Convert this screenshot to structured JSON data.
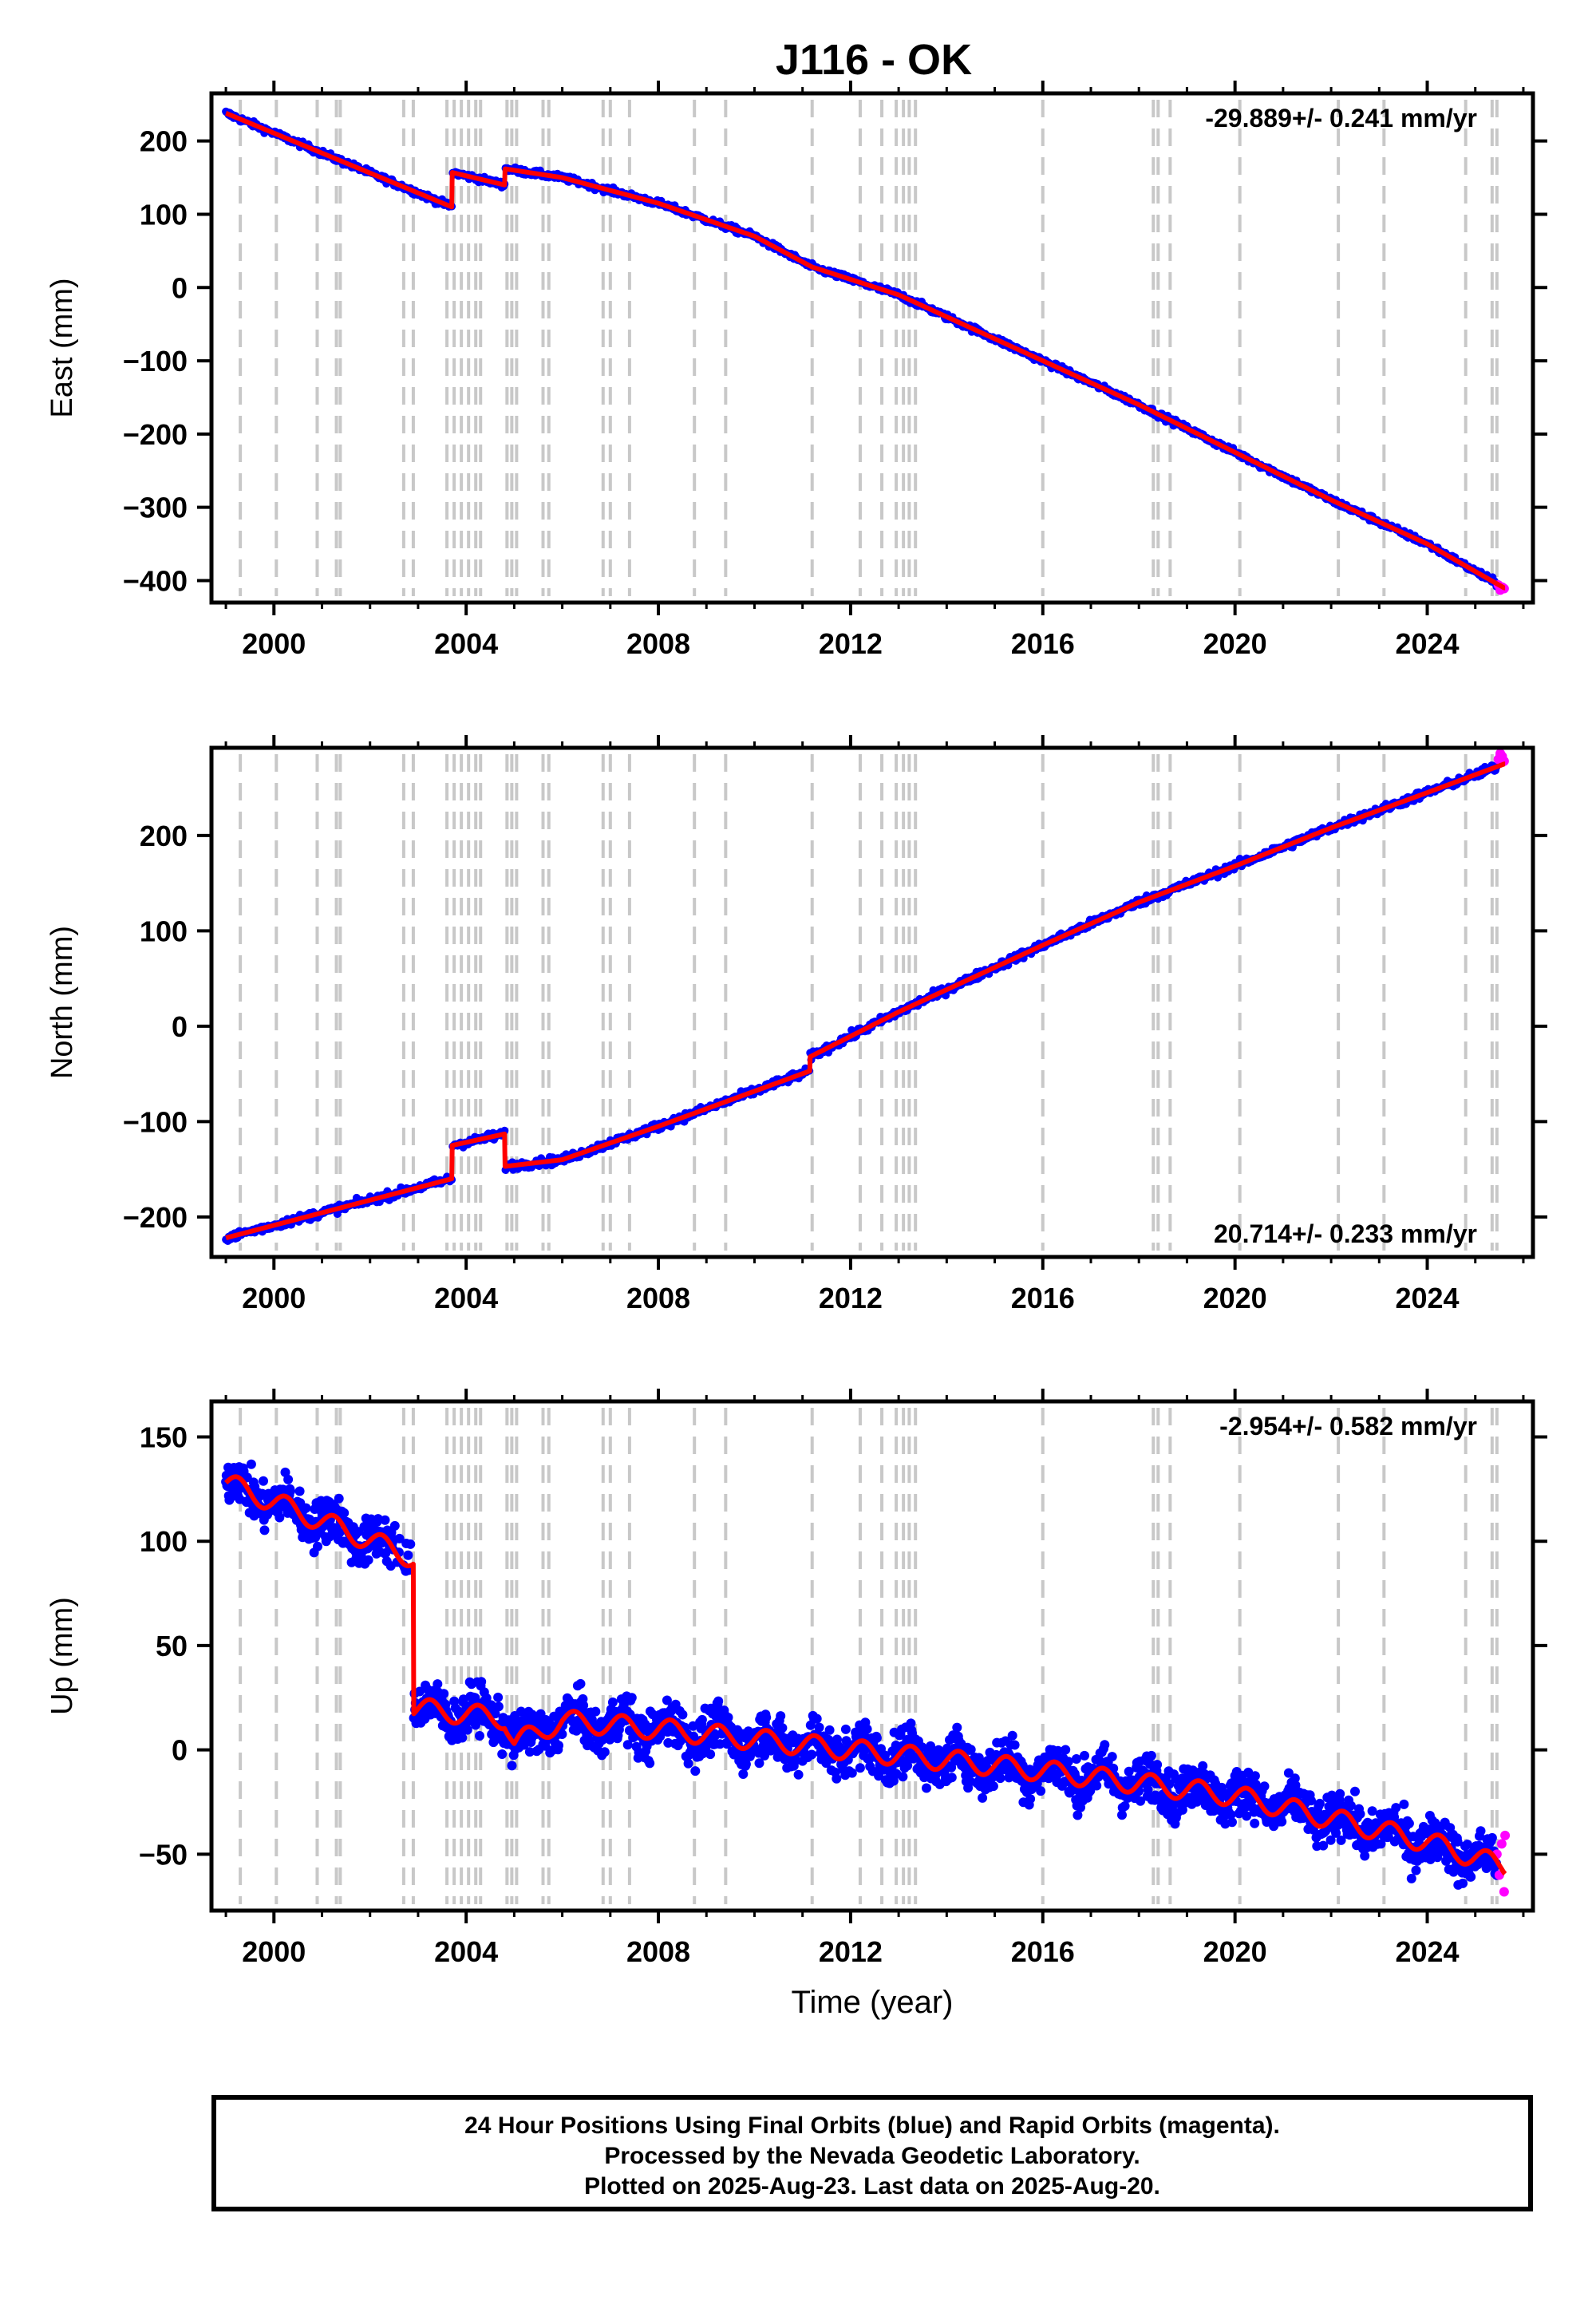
{
  "title": "J116 - OK",
  "colors": {
    "final_orbits": "#0000ff",
    "rapid_orbits": "#ff00ff",
    "model": "#ff0000",
    "event_lines": "#c8c8c8"
  },
  "footer": {
    "line1": "24 Hour Positions Using Final Orbits (blue) and Rapid Orbits (magenta).",
    "line2": "Processed by the Nevada Geodetic Laboratory.",
    "line3": "Plotted on 2025-Aug-23. Last data on 2025-Aug-20."
  },
  "chart_data": [
    {
      "type": "scatter",
      "panel": "east",
      "ylabel": "East (mm)",
      "xlabel": "",
      "xlim": [
        1998.7,
        2026.2
      ],
      "ylim": [
        -430,
        265
      ],
      "xticks": [
        2000,
        2004,
        2008,
        2012,
        2016,
        2020,
        2024
      ],
      "yticks": [
        -400,
        -300,
        -200,
        -100,
        0,
        100,
        200
      ],
      "rate_label": "-29.889+/- 0.241 mm/yr",
      "rate_position": "top-right",
      "trend": {
        "x": [
          1999.0,
          2003.7,
          2003.71,
          2004.8,
          2004.81,
          2006.0,
          2008.0,
          2010.0,
          2011.2,
          2013.0,
          2015.0,
          2016.0,
          2018.0,
          2020.0,
          2022.0,
          2024.0,
          2025.6
        ],
        "y": [
          238,
          110,
          157,
          140,
          162,
          150,
          115,
          70,
          28,
          -10,
          -70,
          -100,
          -160,
          -225,
          -290,
          -350,
          -410
        ]
      },
      "rapid": {
        "x": [
          2025.48,
          2025.52,
          2025.56,
          2025.6
        ],
        "y": [
          -406,
          -413,
          -409,
          -411
        ]
      },
      "scatter_mm": 3
    },
    {
      "type": "scatter",
      "panel": "north",
      "ylabel": "North (mm)",
      "xlabel": "",
      "xlim": [
        1998.7,
        2026.2
      ],
      "ylim": [
        -242,
        292
      ],
      "xticks": [
        2000,
        2004,
        2008,
        2012,
        2016,
        2020,
        2024
      ],
      "yticks": [
        -200,
        -100,
        0,
        100,
        200
      ],
      "rate_label": "20.714+/- 0.233 mm/yr",
      "rate_position": "bottom-right",
      "trend": {
        "x": [
          1999.0,
          2003.7,
          2003.71,
          2004.8,
          2004.81,
          2006.0,
          2008.0,
          2011.15,
          2011.16,
          2013.0,
          2016.0,
          2018.0,
          2020.0,
          2022.0,
          2024.0,
          2025.6
        ],
        "y": [
          -222,
          -160,
          -125,
          -113,
          -147,
          -140,
          -105,
          -47,
          -32,
          15,
          85,
          130,
          168,
          208,
          245,
          275
        ]
      },
      "rapid": {
        "x": [
          2025.48,
          2025.52,
          2025.56,
          2025.6
        ],
        "y": [
          280,
          286,
          283,
          278
        ]
      },
      "scatter_mm": 3
    },
    {
      "type": "scatter",
      "panel": "up",
      "ylabel": "Up (mm)",
      "xlabel": "Time (year)",
      "xlim": [
        1998.7,
        2026.2
      ],
      "ylim": [
        -77,
        167
      ],
      "xticks": [
        2000,
        2004,
        2008,
        2012,
        2016,
        2020,
        2024
      ],
      "yticks": [
        -50,
        0,
        50,
        100,
        150
      ],
      "rate_label": "-2.954+/- 0.582 mm/yr",
      "rate_position": "top-right",
      "trend": {
        "x": [
          1999.0,
          2002.9,
          2002.91,
          2004.8,
          2005.0,
          2006.0,
          2008.0,
          2012.0,
          2016.0,
          2020.0,
          2024.0,
          2025.6
        ],
        "y": [
          128,
          92,
          20,
          15,
          3,
          14,
          10,
          0,
          -10,
          -22,
          -44,
          -56
        ]
      },
      "seasonal_amp_mm": 5,
      "rapid": {
        "x": [
          2025.45,
          2025.5,
          2025.55,
          2025.6,
          2025.62
        ],
        "y": [
          -50,
          -60,
          -45,
          -68,
          -41
        ]
      },
      "scatter_mm": 8
    }
  ],
  "event_years": [
    1999.3,
    2000.05,
    2000.9,
    2001.3,
    2001.38,
    2002.7,
    2002.9,
    2003.6,
    2003.75,
    2003.9,
    2004.05,
    2004.2,
    2004.3,
    2004.85,
    2004.95,
    2005.05,
    2005.6,
    2005.72,
    2006.85,
    2007.0,
    2007.4,
    2008.75,
    2009.4,
    2011.2,
    2012.2,
    2012.65,
    2012.95,
    2013.1,
    2013.22,
    2013.35,
    2016.0,
    2018.3,
    2018.4,
    2018.65,
    2020.1,
    2022.15,
    2023.1,
    2024.8,
    2025.35,
    2025.45
  ]
}
